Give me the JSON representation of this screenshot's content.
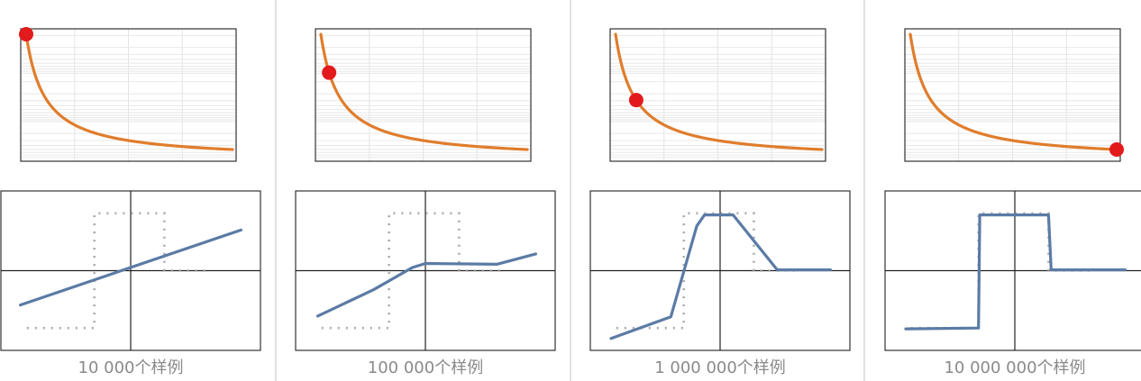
{
  "chart_data": [
    {
      "type": "line",
      "caption": "10 000个样例",
      "loss_curve": {
        "color": "#e07d2c",
        "marker_color": "#e31a1c",
        "marker_t": 0.0
      },
      "fit": {
        "color": "#5b7ba5",
        "target_color": "#aaaaaa",
        "x_range": [
          -1,
          1
        ],
        "y_range": [
          -1,
          1
        ],
        "target": {
          "x": [
            -0.8,
            -0.28,
            -0.28,
            0.26,
            0.26,
            0.62
          ],
          "y": [
            -0.72,
            -0.72,
            0.72,
            0.72,
            0.0,
            0.0
          ]
        },
        "prediction": {
          "x": [
            -0.85,
            0.85
          ],
          "y": [
            -0.43,
            0.51
          ]
        }
      }
    },
    {
      "type": "line",
      "caption": "100 000个样例",
      "loss_curve": {
        "color": "#e07d2c",
        "marker_color": "#e31a1c",
        "marker_t": 0.04
      },
      "fit": {
        "color": "#5b7ba5",
        "target_color": "#aaaaaa",
        "x_range": [
          -1,
          1
        ],
        "y_range": [
          -1,
          1
        ],
        "target": {
          "x": [
            -0.8,
            -0.28,
            -0.28,
            0.26,
            0.26,
            0.62
          ],
          "y": [
            -0.72,
            -0.72,
            0.72,
            0.72,
            0.0,
            0.0
          ]
        },
        "prediction": {
          "x": [
            -0.83,
            -0.4,
            -0.1,
            0.0,
            0.55,
            0.85
          ],
          "y": [
            -0.57,
            -0.24,
            0.04,
            0.09,
            0.08,
            0.21
          ]
        }
      }
    },
    {
      "type": "line",
      "caption": "1 000 000个样例",
      "loss_curve": {
        "color": "#e07d2c",
        "marker_color": "#e31a1c",
        "marker_t": 0.1
      },
      "fit": {
        "color": "#5b7ba5",
        "target_color": "#aaaaaa",
        "x_range": [
          -1,
          1
        ],
        "y_range": [
          -1,
          1
        ],
        "target": {
          "x": [
            -0.8,
            -0.28,
            -0.28,
            0.26,
            0.26,
            0.62
          ],
          "y": [
            -0.72,
            -0.72,
            0.72,
            0.72,
            0.0,
            0.0
          ]
        },
        "prediction": {
          "x": [
            -0.84,
            -0.38,
            -0.18,
            -0.12,
            0.1,
            0.44,
            0.85
          ],
          "y": [
            -0.85,
            -0.58,
            0.56,
            0.7,
            0.7,
            0.01,
            0.01
          ]
        }
      }
    },
    {
      "type": "line",
      "caption": "10 000 000个样例",
      "loss_curve": {
        "color": "#e07d2c",
        "marker_color": "#e31a1c",
        "marker_t": 1.0
      },
      "fit": {
        "color": "#5b7ba5",
        "target_color": "#aaaaaa",
        "x_range": [
          -1,
          1
        ],
        "y_range": [
          -1,
          1
        ],
        "target": {
          "x": [
            -0.8,
            -0.28,
            -0.28,
            0.26,
            0.26,
            0.62
          ],
          "y": [
            -0.72,
            -0.72,
            0.72,
            0.72,
            0.0,
            0.0
          ]
        },
        "prediction": {
          "x": [
            -0.84,
            -0.28,
            -0.27,
            0.26,
            0.28,
            0.85
          ],
          "y": [
            -0.73,
            -0.72,
            0.7,
            0.7,
            0.01,
            0.01
          ]
        }
      }
    }
  ]
}
